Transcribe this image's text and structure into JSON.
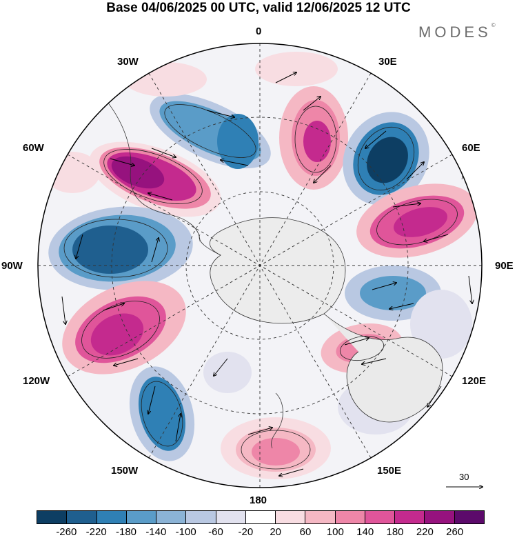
{
  "title": "Base 04/06/2025 00 UTC, valid 12/06/2025 12 UTC",
  "brand": "MODES",
  "brand_mark": "©",
  "longitude_labels": {
    "0": "0",
    "30E": "30E",
    "60E": "60E",
    "90E": "90E",
    "120E": "120E",
    "150E": "150E",
    "180": "180",
    "150W": "150W",
    "120W": "120W",
    "90W": "90W",
    "60W": "60W",
    "30W": "30W"
  },
  "reference_vector": "30",
  "colorbar": {
    "colors": [
      "#0d3e63",
      "#1f5f8f",
      "#2f80b5",
      "#5a9cc8",
      "#8bb3d6",
      "#b9c8e2",
      "#e2e2ef",
      "#ffffff",
      "#f8dde2",
      "#f5b8c4",
      "#ee86a8",
      "#e0559a",
      "#c42a8e",
      "#96127e",
      "#5c0a6b"
    ],
    "ticks": [
      "-260",
      "-220",
      "-180",
      "-140",
      "-100",
      "-60",
      "-20",
      "20",
      "60",
      "100",
      "140",
      "180",
      "220",
      "260"
    ]
  },
  "map": {
    "projection": "south polar stereographic",
    "field": "geopotential height anomaly with wind vectors",
    "anomaly_centers": [
      {
        "lon_label": "50W",
        "value": 260
      },
      {
        "lon_label": "15W",
        "value": -200
      },
      {
        "lon_label": "10E",
        "value": 220
      },
      {
        "lon_label": "45E",
        "value": -260
      },
      {
        "lon_label": "70E",
        "value": 180
      },
      {
        "lon_label": "100E",
        "value": -140
      },
      {
        "lon_label": "125E",
        "value": 120
      },
      {
        "lon_label": "80W",
        "value": -220
      },
      {
        "lon_label": "110W",
        "value": 220
      },
      {
        "lon_label": "150W",
        "value": -200
      },
      {
        "lon_label": "180",
        "value": 160
      }
    ]
  }
}
